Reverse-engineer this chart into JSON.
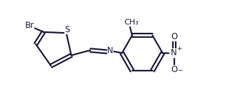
{
  "bg_color": "#ffffff",
  "line_color": "#1a1a3a",
  "line_width": 1.6,
  "font_size_label": 8.5,
  "font_size_charge": 6.5,
  "figsize": [
    3.6,
    1.43
  ],
  "dpi": 100,
  "xlim": [
    0,
    9.5
  ],
  "ylim": [
    0,
    3.8
  ]
}
